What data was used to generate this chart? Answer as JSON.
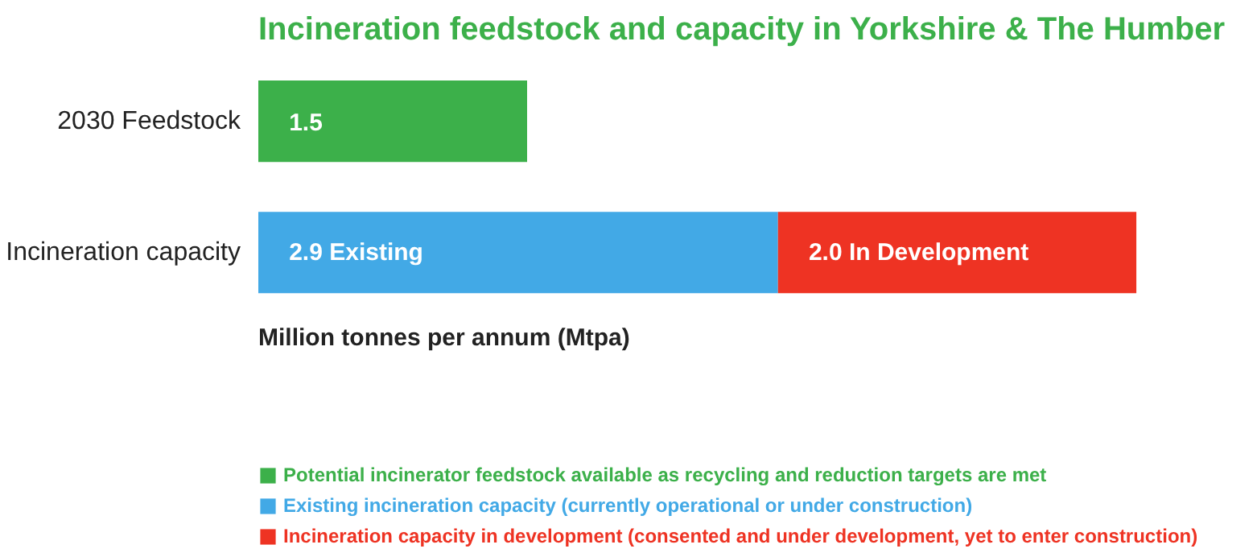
{
  "chart_data": {
    "type": "bar",
    "orientation": "horizontal",
    "stacked": true,
    "title": "Incineration feedstock and capacity in Yorkshire & The Humber",
    "xlabel": "Million tonnes per annum (Mtpa)",
    "categories": [
      "2030 Feedstock",
      "Incineration capacity"
    ],
    "series": [
      {
        "name": "Potential incinerator feedstock available as recycling and reduction targets are met",
        "color": "#3cb04a",
        "values": [
          1.5,
          null
        ],
        "value_labels": [
          "1.5",
          null
        ]
      },
      {
        "name": "Existing incineration capacity (currently operational or under construction)",
        "color": "#42a9e6",
        "values": [
          null,
          2.9
        ],
        "value_labels": [
          null,
          "2.9 Existing"
        ]
      },
      {
        "name": "Incineration capacity in development (consented and under development, yet to enter construction)",
        "color": "#ee3323",
        "values": [
          null,
          2.0
        ],
        "value_labels": [
          null,
          "2.0 In Development"
        ]
      }
    ],
    "legend": "bottom"
  }
}
